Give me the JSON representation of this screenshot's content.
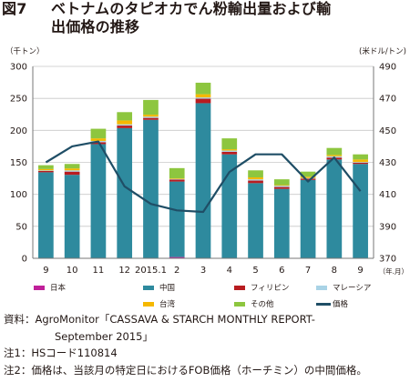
{
  "figure": {
    "number": "図7",
    "title_line1": "ベトナムのタピオカでん粉輸出量および輸",
    "title_line2": "出価格の推移"
  },
  "chart_data": {
    "type": "bar",
    "stacked": true,
    "left_axis": {
      "unit_label": "（千トン）",
      "ylim": [
        0,
        300
      ],
      "ticks": [
        0,
        50,
        100,
        150,
        200,
        250,
        300
      ]
    },
    "right_axis": {
      "unit_label": "(米ドル/トン)",
      "ylim": [
        370,
        490
      ],
      "ticks": [
        370,
        390,
        410,
        430,
        450,
        470,
        490
      ]
    },
    "categories": [
      "9",
      "10",
      "11",
      "12",
      "2015.1",
      "2",
      "3",
      "4",
      "5",
      "6",
      "7",
      "8",
      "9"
    ],
    "x_unit": "（年.月）",
    "series": [
      {
        "name": "日本",
        "color": "#c0209a",
        "values": [
          0.5,
          0.5,
          0.5,
          0.5,
          0.5,
          2,
          0.5,
          0.5,
          0.5,
          0.5,
          0.5,
          0.5,
          0.5
        ]
      },
      {
        "name": "中国",
        "color": "#2e8a9e",
        "values": [
          134,
          130,
          178,
          203,
          216,
          118,
          242,
          162,
          117,
          108,
          122,
          154,
          147
        ]
      },
      {
        "name": "フィリピン",
        "color": "#b81c20",
        "values": [
          2,
          5,
          3,
          4,
          3,
          3,
          7,
          4,
          4,
          3,
          2,
          3,
          2
        ]
      },
      {
        "name": "マレーシア",
        "color": "#a9d3e6",
        "values": [
          1,
          2,
          2,
          2,
          2,
          1,
          2,
          2,
          2,
          2,
          1,
          2,
          1
        ]
      },
      {
        "name": "台湾",
        "color": "#f5b800",
        "values": [
          2,
          3,
          4,
          6,
          3,
          1,
          5,
          2,
          3,
          1,
          2,
          2,
          4
        ]
      },
      {
        "name": "その他",
        "color": "#8dc63f",
        "values": [
          6,
          7,
          15,
          13,
          23,
          16,
          18,
          17,
          11,
          9,
          8,
          11,
          8
        ]
      }
    ],
    "line": {
      "name": "価格",
      "color": "#1f4e66",
      "axis": "right",
      "values": [
        430,
        440,
        443,
        415,
        404,
        400,
        399,
        424,
        435,
        435,
        418,
        433,
        412
      ]
    },
    "grid": true,
    "legend_position": "bottom"
  },
  "notes": {
    "source_line1": "資料：AgroMonitor「CASSAVA & STARCH MONTHLY REPORT-",
    "source_line2": "September 2015」",
    "note1": "注1：HSコード110814",
    "note2": "注2：価格は、当該月の特定日におけるFOB価格（ホーチミン）の中間価格。"
  }
}
